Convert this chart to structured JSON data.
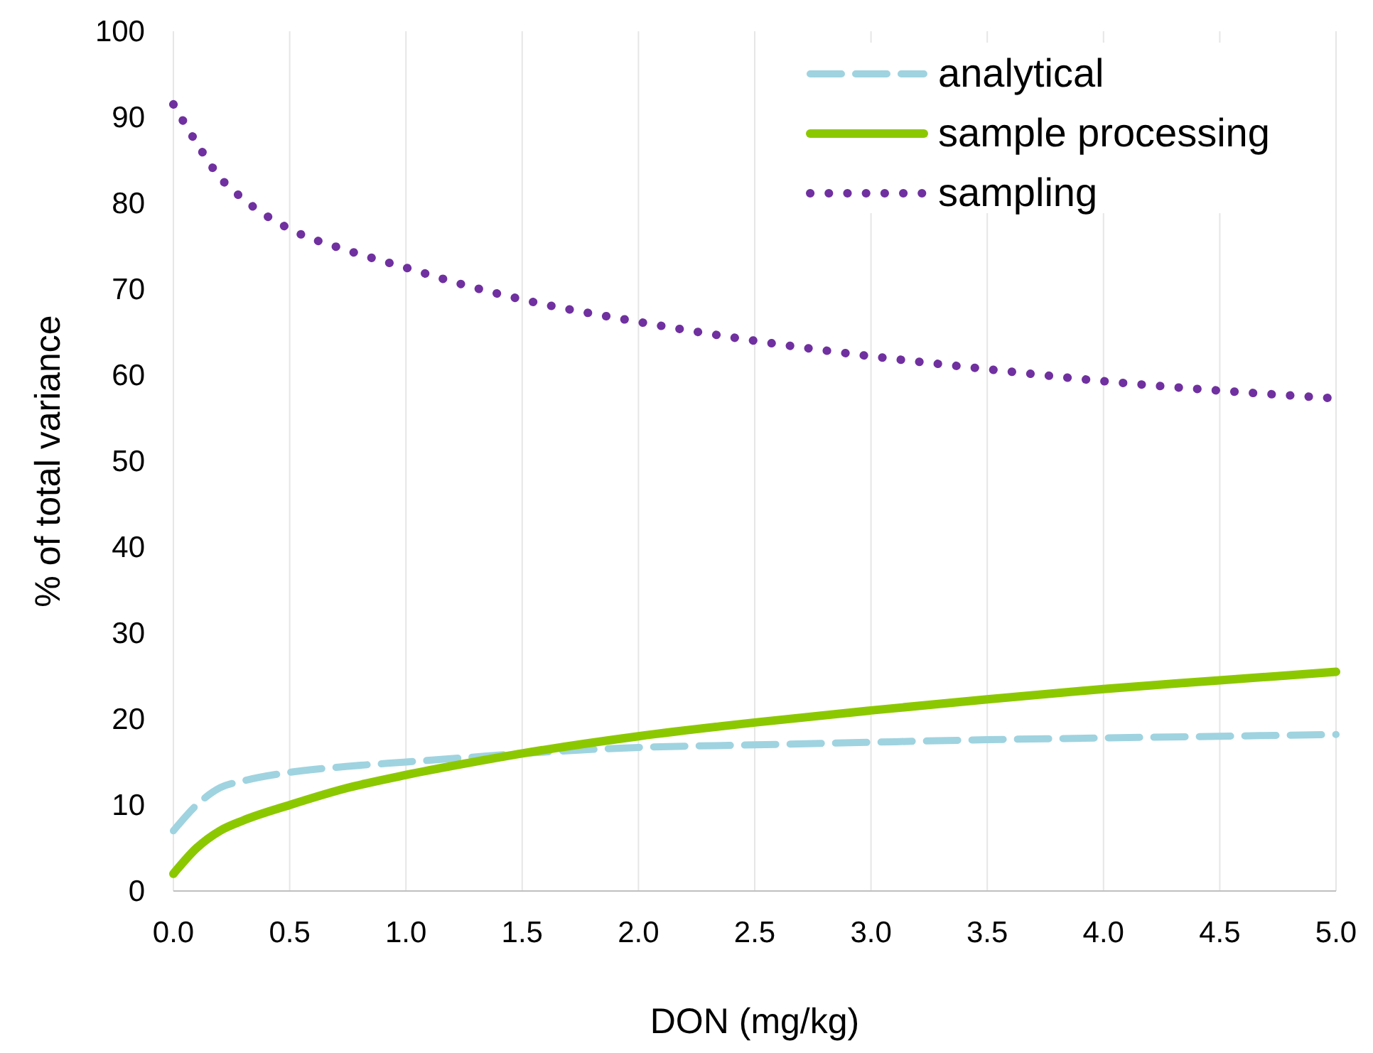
{
  "chart_data": {
    "type": "line",
    "xlabel": "DON (mg/kg)",
    "ylabel": "% of total variance",
    "xlim": [
      0,
      5
    ],
    "xticks": [
      {
        "value": 0,
        "label": "0.0"
      },
      {
        "value": 0.5,
        "label": "0.5"
      },
      {
        "value": 1,
        "label": "1.0"
      },
      {
        "value": 1.5,
        "label": "1.5"
      },
      {
        "value": 2,
        "label": "2.0"
      },
      {
        "value": 2.5,
        "label": "2.5"
      },
      {
        "value": 3,
        "label": "3.0"
      },
      {
        "value": 3.5,
        "label": "3.5"
      },
      {
        "value": 4,
        "label": "4.0"
      },
      {
        "value": 4.5,
        "label": "4.5"
      },
      {
        "value": 5,
        "label": "5.0"
      }
    ],
    "ylim": [
      0,
      100
    ],
    "yticks": [
      0,
      10,
      20,
      30,
      40,
      50,
      60,
      70,
      80,
      90,
      100
    ],
    "grid": "x",
    "legend": "top right",
    "x": [
      0,
      0.1,
      0.2,
      0.3,
      0.5,
      0.75,
      1,
      1.25,
      1.5,
      2,
      2.5,
      3,
      3.5,
      4,
      4.5,
      5
    ],
    "series": [
      {
        "name": "analytical",
        "color": "#9fd3e0",
        "line_style": "dashed",
        "values": [
          7,
          10,
          12,
          12.8,
          13.8,
          14.5,
          15,
          15.5,
          16,
          16.7,
          17,
          17.3,
          17.6,
          17.8,
          18,
          18.2
        ]
      },
      {
        "name": "sample processing",
        "color": "#8cc800",
        "line_style": "solid",
        "values": [
          2,
          5,
          7,
          8.2,
          10,
          12,
          13.5,
          14.8,
          16,
          18,
          19.6,
          21,
          22.3,
          23.5,
          24.5,
          25.5
        ]
      },
      {
        "name": "sampling",
        "color": "#7030a0",
        "line_style": "dotted",
        "values": [
          91.5,
          87,
          83,
          80.5,
          77,
          74.5,
          72.5,
          70.5,
          68.8,
          66.2,
          64,
          62.2,
          60.7,
          59.3,
          58.2,
          57.3
        ]
      }
    ]
  }
}
